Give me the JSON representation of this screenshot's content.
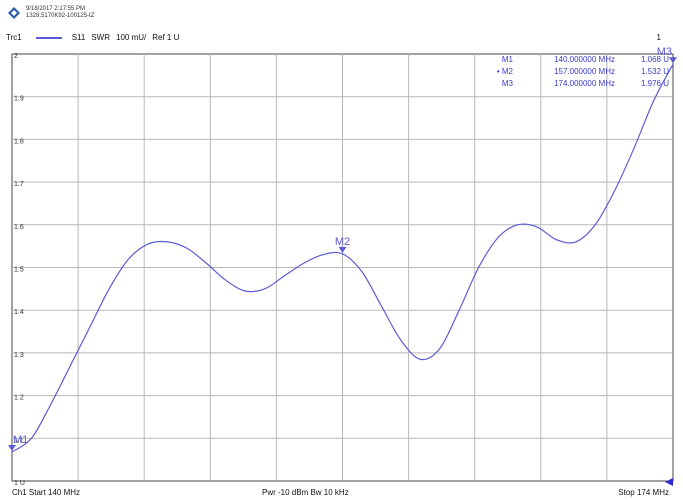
{
  "header": {
    "datetime": "9/18/2017 2:17:55 PM",
    "serial": "1328.5170K92-100125-tZ",
    "logo_icon": "rohde-schwarz-logo-icon"
  },
  "trace": {
    "name": "Trc1",
    "param": "S11",
    "format": "SWR",
    "scale": "100 mU/",
    "ref": "Ref 1 U",
    "color": "#5b5bd6",
    "channel_num": "1"
  },
  "markers": [
    {
      "label": "M1",
      "active": false,
      "freq": "140.000000",
      "unit": "MHz",
      "value": "1.068 U"
    },
    {
      "label": "M2",
      "active": true,
      "freq": "157.000000",
      "unit": "MHz",
      "value": "1.532 U"
    },
    {
      "label": "M3",
      "active": false,
      "freq": "174.000000",
      "unit": "MHz",
      "value": "1.976 U"
    }
  ],
  "footer": {
    "start": "Ch1  Start  140 MHz",
    "mid": "Pwr  -10 dBm  Bw  10 kHz",
    "stop": "Stop  174 MHz"
  },
  "chart_data": {
    "type": "line",
    "title": "",
    "xlabel": "",
    "ylabel": "",
    "xlim": [
      140,
      174
    ],
    "ylim": [
      1.0,
      2.0
    ],
    "grid": true,
    "y_ticks": [
      "2",
      "1.9",
      "1.8",
      "1.7",
      "1.6",
      "1.5",
      "1.4",
      "1.3",
      "1.2",
      "1.1",
      "1 U"
    ],
    "series": [
      {
        "name": "S11",
        "x": [
          140,
          141,
          142,
          143,
          144,
          145,
          146,
          147,
          148,
          149,
          150,
          151,
          152,
          153,
          154,
          155,
          156,
          157,
          158,
          159,
          160,
          161,
          162,
          163,
          164,
          165,
          166,
          167,
          168,
          169,
          170,
          171,
          172,
          173,
          174
        ],
        "y": [
          1.068,
          1.1,
          1.18,
          1.27,
          1.36,
          1.45,
          1.52,
          1.555,
          1.56,
          1.545,
          1.51,
          1.47,
          1.445,
          1.45,
          1.48,
          1.51,
          1.53,
          1.532,
          1.49,
          1.41,
          1.33,
          1.285,
          1.31,
          1.4,
          1.5,
          1.57,
          1.6,
          1.595,
          1.565,
          1.56,
          1.6,
          1.68,
          1.78,
          1.89,
          1.976
        ]
      }
    ],
    "marker_points": [
      {
        "label": "M1",
        "x": 140,
        "y": 1.068
      },
      {
        "label": "M2",
        "x": 157,
        "y": 1.532
      },
      {
        "label": "M3",
        "x": 174,
        "y": 1.976
      }
    ]
  }
}
